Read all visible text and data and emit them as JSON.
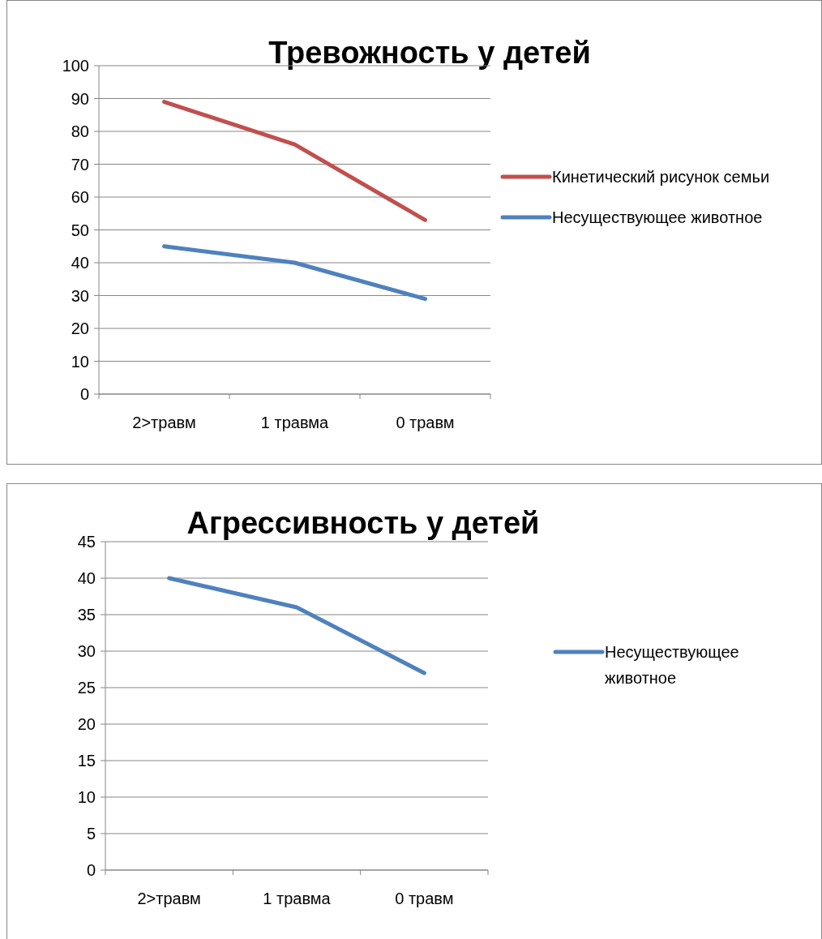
{
  "chart_data": [
    {
      "type": "line",
      "title": "Тревожность у детей",
      "categories": [
        "2>травм",
        "1 травма",
        "0 травм"
      ],
      "series": [
        {
          "name": "Кинетический рисунок семьи",
          "color": "#c0504d",
          "values": [
            89,
            76,
            53
          ]
        },
        {
          "name": "Несуществующее животное",
          "color": "#4f81bd",
          "values": [
            45,
            40,
            29
          ]
        }
      ],
      "ylim": [
        0,
        100
      ],
      "yticks": [
        0,
        10,
        20,
        30,
        40,
        50,
        60,
        70,
        80,
        90,
        100
      ],
      "grid": "y",
      "legend": "right",
      "marker": "none",
      "line_style": "solid"
    },
    {
      "type": "line",
      "title": "Агрессивность у детей",
      "categories": [
        "2>травм",
        "1 травма",
        "0 травм"
      ],
      "series": [
        {
          "name": "Несуществующее животное",
          "color": "#4f81bd",
          "values": [
            40,
            36,
            27
          ]
        }
      ],
      "ylim": [
        0,
        45
      ],
      "yticks": [
        0,
        5,
        10,
        15,
        20,
        25,
        30,
        35,
        40,
        45
      ],
      "grid": "y",
      "legend": "right",
      "marker": "none",
      "line_style": "solid"
    }
  ]
}
